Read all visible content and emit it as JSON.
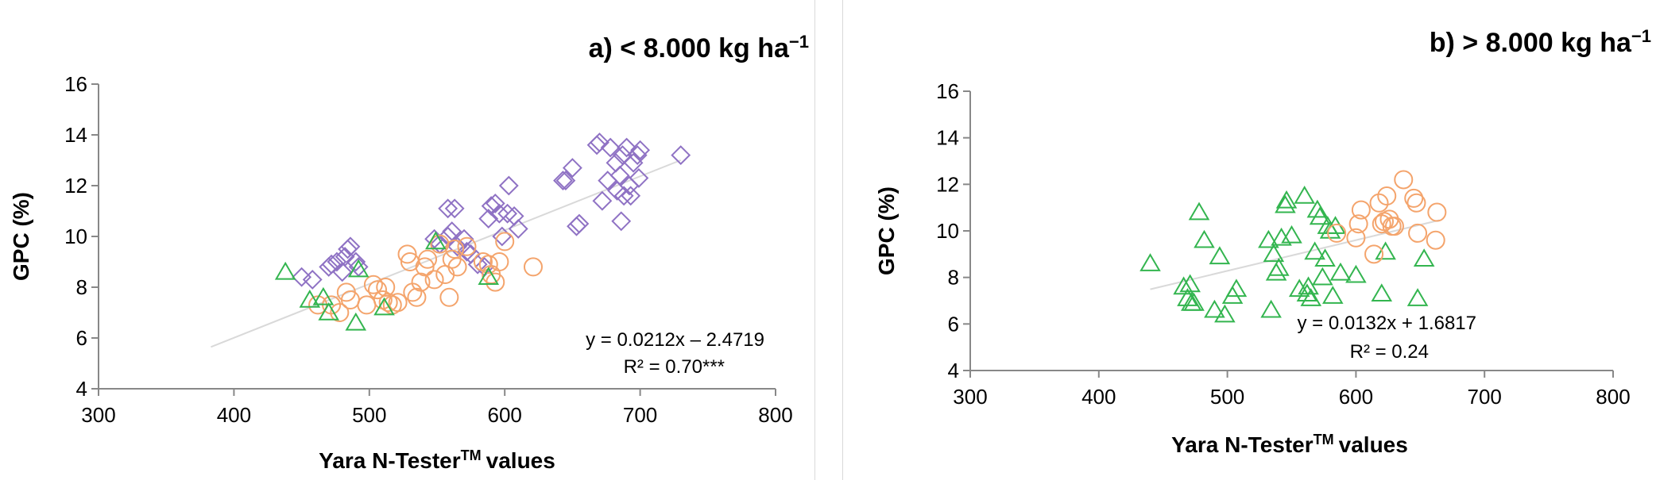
{
  "chart_data": [
    {
      "type": "scatter",
      "title": "a) < 8.000 kg ha",
      "title_superscript": "−1",
      "xlabel": "Yara N-Tester",
      "xlabel_superscript": "TM",
      "xlabel_suffix": "values",
      "ylabel": "GPC (%)",
      "xlim": [
        300,
        800
      ],
      "ylim": [
        4,
        16
      ],
      "xticks": [
        300,
        400,
        500,
        600,
        700,
        800
      ],
      "yticks": [
        4,
        6,
        8,
        10,
        12,
        14,
        16
      ],
      "equation": "y = 0.0212x – 2.4719",
      "r2": "R² = 0.70***",
      "trendline": {
        "slope": 0.0212,
        "intercept": -2.4719,
        "x_range": [
          383,
          730
        ],
        "color": "#d9d9d9"
      },
      "series": [
        {
          "marker": "diamond",
          "color": "#8f72c4",
          "points": [
            [
              450,
              8.4
            ],
            [
              458,
              8.3
            ],
            [
              470,
              8.8
            ],
            [
              472,
              8.9
            ],
            [
              476,
              9.0
            ],
            [
              480,
              8.6
            ],
            [
              482,
              9.2
            ],
            [
              484,
              9.5
            ],
            [
              486,
              9.6
            ],
            [
              490,
              9.0
            ],
            [
              492,
              8.8
            ],
            [
              548,
              9.9
            ],
            [
              552,
              9.7
            ],
            [
              558,
              10.0
            ],
            [
              561,
              10.2
            ],
            [
              558,
              11.1
            ],
            [
              563,
              11.1
            ],
            [
              565,
              9.6
            ],
            [
              570,
              9.9
            ],
            [
              572,
              9.4
            ],
            [
              575,
              9.3
            ],
            [
              580,
              8.9
            ],
            [
              585,
              8.8
            ],
            [
              588,
              10.7
            ],
            [
              590,
              11.2
            ],
            [
              593,
              11.3
            ],
            [
              596,
              10.9
            ],
            [
              598,
              10.0
            ],
            [
              602,
              10.9
            ],
            [
              603,
              12.0
            ],
            [
              607,
              10.8
            ],
            [
              610,
              10.3
            ],
            [
              643,
              12.2
            ],
            [
              645,
              12.2
            ],
            [
              650,
              12.7
            ],
            [
              653,
              10.4
            ],
            [
              655,
              10.5
            ],
            [
              668,
              13.6
            ],
            [
              670,
              13.7
            ],
            [
              672,
              11.4
            ],
            [
              676,
              12.2
            ],
            [
              678,
              13.5
            ],
            [
              682,
              12.9
            ],
            [
              683,
              11.8
            ],
            [
              685,
              12.4
            ],
            [
              686,
              10.6
            ],
            [
              687,
              13.2
            ],
            [
              688,
              11.6
            ],
            [
              690,
              13.5
            ],
            [
              692,
              12.0
            ],
            [
              693,
              11.6
            ],
            [
              695,
              12.9
            ],
            [
              698,
              13.2
            ],
            [
              699,
              12.3
            ],
            [
              700,
              13.4
            ],
            [
              730,
              13.2
            ]
          ]
        },
        {
          "marker": "circle",
          "color": "#f4a46c",
          "points": [
            [
              462,
              7.3
            ],
            [
              472,
              7.3
            ],
            [
              478,
              7.0
            ],
            [
              483,
              7.8
            ],
            [
              486,
              7.5
            ],
            [
              498,
              7.3
            ],
            [
              503,
              8.1
            ],
            [
              506,
              7.9
            ],
            [
              510,
              7.5
            ],
            [
              512,
              8.0
            ],
            [
              514,
              7.4
            ],
            [
              517,
              7.3
            ],
            [
              521,
              7.4
            ],
            [
              528,
              9.3
            ],
            [
              530,
              9.0
            ],
            [
              532,
              7.8
            ],
            [
              535,
              7.6
            ],
            [
              538,
              8.2
            ],
            [
              541,
              8.8
            ],
            [
              543,
              9.1
            ],
            [
              548,
              8.3
            ],
            [
              552,
              9.7
            ],
            [
              556,
              8.5
            ],
            [
              559,
              7.6
            ],
            [
              561,
              9.1
            ],
            [
              563,
              9.5
            ],
            [
              565,
              8.8
            ],
            [
              572,
              9.6
            ],
            [
              584,
              9.0
            ],
            [
              588,
              8.9
            ],
            [
              590,
              8.5
            ],
            [
              593,
              8.2
            ],
            [
              596,
              9.0
            ],
            [
              600,
              9.8
            ],
            [
              621,
              8.8
            ]
          ]
        },
        {
          "marker": "triangle",
          "color": "#33b54f",
          "points": [
            [
              438,
              8.6
            ],
            [
              456,
              7.5
            ],
            [
              466,
              7.6
            ],
            [
              470,
              7.0
            ],
            [
              490,
              6.6
            ],
            [
              492,
              8.7
            ],
            [
              511,
              7.2
            ],
            [
              549,
              9.8
            ],
            [
              588,
              8.4
            ]
          ]
        }
      ]
    },
    {
      "type": "scatter",
      "title": "b) > 8.000 kg ha",
      "title_superscript": "−1",
      "xlabel": "Yara N-Tester",
      "xlabel_superscript": "TM",
      "xlabel_suffix": "values",
      "ylabel": "GPC (%)",
      "xlim": [
        300,
        800
      ],
      "ylim": [
        4,
        16
      ],
      "xticks": [
        300,
        400,
        500,
        600,
        700,
        800
      ],
      "yticks": [
        4,
        6,
        8,
        10,
        12,
        14,
        16
      ],
      "equation": "y = 0.0132x + 1.6817",
      "r2": "R² = 0.24",
      "trendline": {
        "slope": 0.0132,
        "intercept": 1.6817,
        "x_range": [
          440,
          665
        ],
        "color": "#d9d9d9"
      },
      "series": [
        {
          "marker": "triangle",
          "color": "#33b54f",
          "points": [
            [
              440,
              8.6
            ],
            [
              466,
              7.6
            ],
            [
              469,
              7.1
            ],
            [
              471,
              7.7
            ],
            [
              472,
              6.9
            ],
            [
              474,
              6.9
            ],
            [
              478,
              10.8
            ],
            [
              482,
              9.6
            ],
            [
              490,
              6.6
            ],
            [
              494,
              8.9
            ],
            [
              498,
              6.4
            ],
            [
              504,
              7.2
            ],
            [
              507,
              7.5
            ],
            [
              532,
              9.6
            ],
            [
              534,
              6.6
            ],
            [
              536,
              9.0
            ],
            [
              538,
              8.2
            ],
            [
              540,
              8.4
            ],
            [
              542,
              9.7
            ],
            [
              545,
              11.1
            ],
            [
              546,
              11.3
            ],
            [
              550,
              9.8
            ],
            [
              556,
              7.5
            ],
            [
              560,
              11.5
            ],
            [
              562,
              7.3
            ],
            [
              563,
              7.6
            ],
            [
              565,
              7.1
            ],
            [
              568,
              9.1
            ],
            [
              570,
              10.9
            ],
            [
              572,
              10.6
            ],
            [
              574,
              8.0
            ],
            [
              576,
              8.8
            ],
            [
              578,
              10.2
            ],
            [
              580,
              10.0
            ],
            [
              582,
              7.2
            ],
            [
              584,
              10.2
            ],
            [
              588,
              8.2
            ],
            [
              600,
              8.1
            ],
            [
              620,
              7.3
            ],
            [
              623,
              9.1
            ],
            [
              648,
              7.1
            ],
            [
              653,
              8.8
            ]
          ]
        },
        {
          "marker": "circle",
          "color": "#f4a46c",
          "points": [
            [
              585,
              9.9
            ],
            [
              600,
              9.7
            ],
            [
              602,
              10.3
            ],
            [
              604,
              10.9
            ],
            [
              614,
              9.0
            ],
            [
              618,
              11.2
            ],
            [
              620,
              10.3
            ],
            [
              622,
              10.4
            ],
            [
              624,
              11.5
            ],
            [
              626,
              10.5
            ],
            [
              628,
              10.2
            ],
            [
              630,
              10.2
            ],
            [
              637,
              12.2
            ],
            [
              645,
              11.4
            ],
            [
              647,
              11.2
            ],
            [
              648,
              9.9
            ],
            [
              662,
              9.6
            ],
            [
              663,
              10.8
            ]
          ]
        }
      ]
    }
  ]
}
